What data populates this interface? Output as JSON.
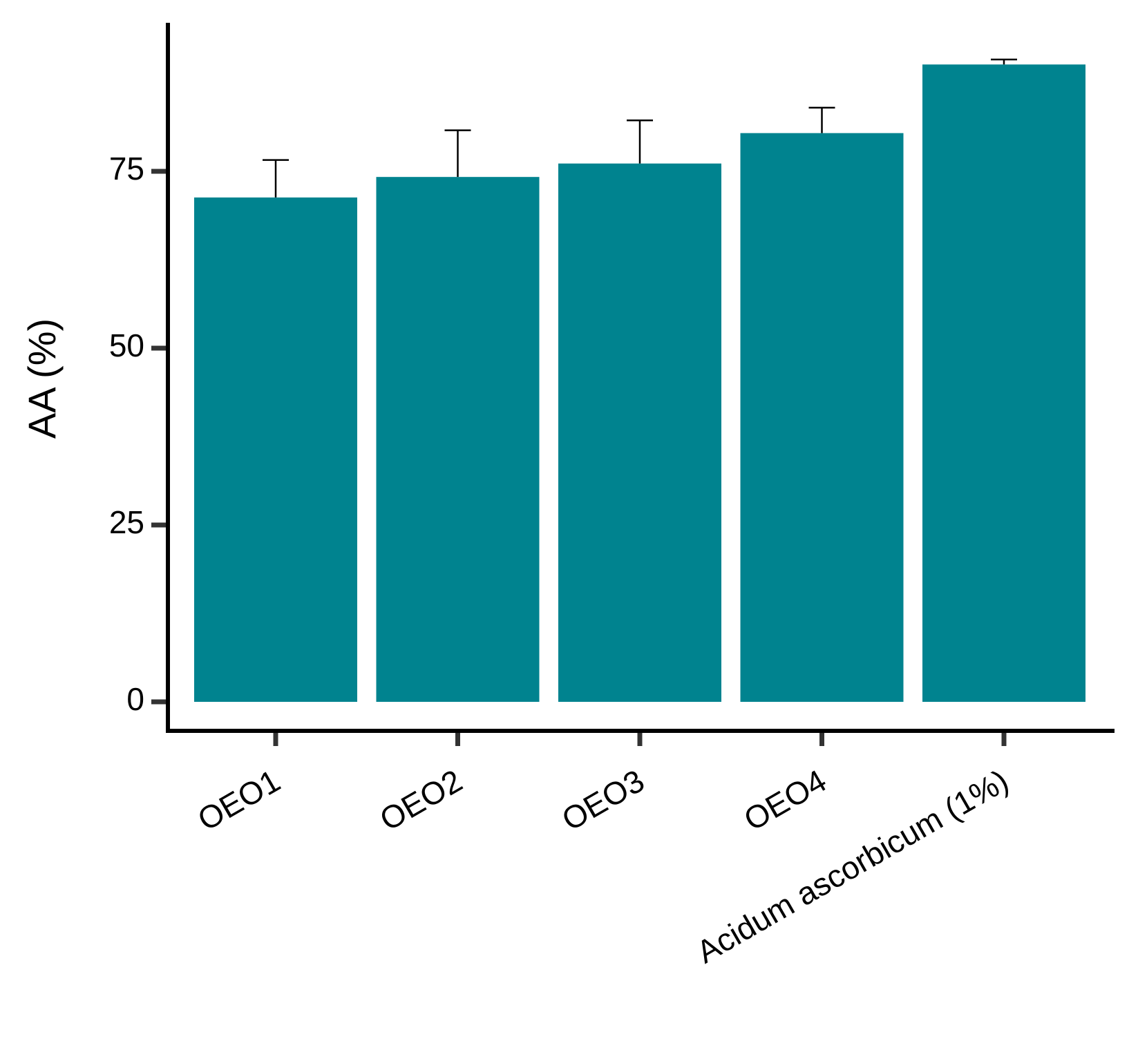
{
  "chart_data": {
    "type": "bar",
    "title": "",
    "xlabel": "",
    "ylabel": "AA (%)",
    "categories": [
      "OEO1",
      "OEO2",
      "OEO3",
      "OEO4",
      "Acidum ascorbicum (1%)"
    ],
    "values": [
      71.3,
      74.2,
      76.1,
      80.4,
      90.1
    ],
    "errors": [
      5.3,
      6.6,
      6.1,
      3.6,
      0.7
    ],
    "ylim": [
      -4.1,
      95.7
    ],
    "yticks": [
      0,
      25,
      50,
      75
    ],
    "ytick_labels": [
      "0",
      "25",
      "50",
      "75"
    ],
    "grid": false,
    "legend": "none",
    "bar_color": "#00838F",
    "error_color": "#000000",
    "axis_color": "#000000",
    "tick_color": "#333333"
  }
}
